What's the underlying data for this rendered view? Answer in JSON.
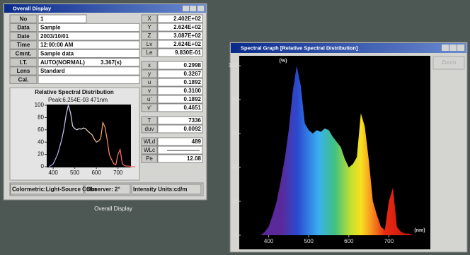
{
  "overall_display": {
    "title": "Overall Display",
    "info_rows": [
      {
        "label": "No",
        "value": "1"
      },
      {
        "label": "Data",
        "value": "Sample"
      },
      {
        "label": "Date",
        "value": "2003/10/01"
      },
      {
        "label": "Time",
        "value": "12:00:00 AM"
      },
      {
        "label": "Cmnt.",
        "value": "Sample data"
      },
      {
        "label": "I.T.",
        "value": "AUTO(NORMAL)",
        "extra": "3.367(s)"
      },
      {
        "label": "Lens",
        "value": "Standard"
      },
      {
        "label": "Cal."
      }
    ],
    "measure_groups": [
      [
        {
          "label": "X",
          "value": "2.402E+02"
        },
        {
          "label": "Y",
          "value": "2.624E+02"
        },
        {
          "label": "Z",
          "value": "3.087E+02"
        },
        {
          "label": "Lv",
          "value": "2.624E+02"
        },
        {
          "label": "Le",
          "value": "9.830E-01"
        }
      ],
      [
        {
          "label": "x",
          "value": "0.2998"
        },
        {
          "label": "y",
          "value": "0.3267"
        },
        {
          "label": "u",
          "value": "0.1892"
        },
        {
          "label": "v",
          "value": "0.3100"
        },
        {
          "label": "u'",
          "value": "0.1892"
        },
        {
          "label": "v'",
          "value": "0.4651"
        }
      ],
      [
        {
          "label": "T",
          "value": "7336"
        },
        {
          "label": "duv",
          "value": "0.0092"
        }
      ],
      [
        {
          "label": "WLd",
          "value": "489"
        },
        {
          "label": "WLc"
        },
        {
          "label": "Pe",
          "value": "12.08"
        }
      ]
    ],
    "chart": {
      "title": "Relative Spectral Distribution",
      "peak": "Peak:6.254E-03 471nm",
      "xlim": [
        370,
        760
      ],
      "xticks": [
        400,
        500,
        600,
        700
      ],
      "ylim": [
        0,
        100
      ],
      "yticks": [
        0,
        20,
        40,
        60,
        80,
        100
      ]
    },
    "status": [
      "Colormetric:Light-Source Color",
      "Observer: 2°",
      "Intensity Units:cd/m"
    ]
  },
  "caption": "Overall Display",
  "spectral_graph": {
    "title": "Spectral Graph [Relative Spectral Distribution]",
    "zoom_button": "Zoom",
    "y_label": "(%)",
    "x_label": "(nm)",
    "xlim": [
      330,
      800
    ],
    "xticks": [
      400,
      500,
      600,
      700
    ],
    "ylim": [
      0,
      100
    ],
    "yticks": [
      0,
      20,
      40,
      60,
      80,
      100
    ],
    "x": [
      380,
      390,
      400,
      410,
      420,
      430,
      440,
      450,
      460,
      470,
      480,
      490,
      500,
      510,
      520,
      530,
      540,
      550,
      560,
      570,
      580,
      590,
      600,
      610,
      620,
      630,
      640,
      650,
      660,
      670,
      680,
      690,
      700,
      710,
      720,
      730,
      740,
      750,
      760,
      770,
      780
    ],
    "values": [
      0,
      2,
      5,
      12,
      20,
      32,
      45,
      62,
      85,
      100,
      88,
      66,
      62,
      60,
      62,
      61,
      63,
      62,
      58,
      55,
      52,
      45,
      40,
      42,
      46,
      72,
      64,
      44,
      20,
      12,
      5,
      3,
      20,
      28,
      5,
      2,
      1,
      1,
      0,
      0,
      0
    ]
  }
}
